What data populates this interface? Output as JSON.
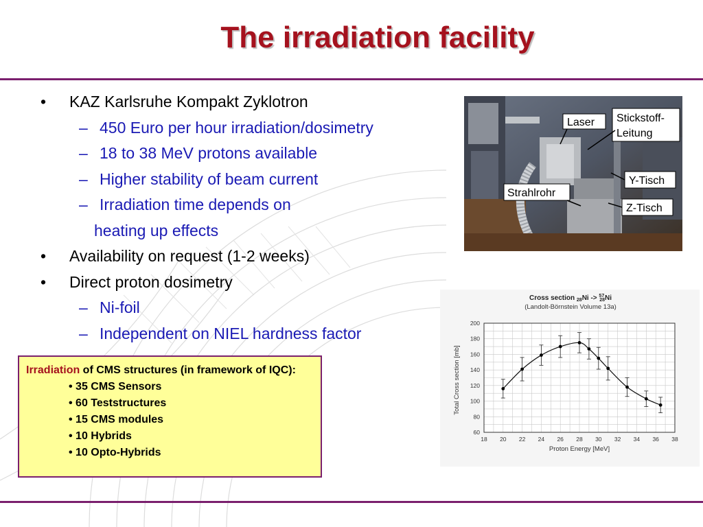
{
  "slide": {
    "title": "The irradiation facility",
    "bullets": [
      {
        "level": 1,
        "text": "KAZ Karlsruhe Kompakt Zyklotron"
      },
      {
        "level": 2,
        "text": "450 Euro per hour irradiation/dosimetry"
      },
      {
        "level": 2,
        "text": "18 to 38 MeV protons available"
      },
      {
        "level": 2,
        "text": "Higher stability of beam current"
      },
      {
        "level": 2,
        "text": "Irradiation time depends on"
      },
      {
        "level": 3,
        "text": "heating up effects"
      },
      {
        "level": 1,
        "text": "Availability on request (1-2 weeks)"
      },
      {
        "level": 1,
        "text": "Direct proton dosimetry"
      },
      {
        "level": 2,
        "text": "Ni-foil"
      },
      {
        "level": 2,
        "text": "Independent on NIEL hardness factor"
      }
    ]
  },
  "infobox": {
    "highlight": "Irradiation",
    "lead": " of CMS structures (in framework of IQC):",
    "items": [
      "• 35 CMS Sensors",
      "• 60 Teststructures",
      "• 15 CMS modules",
      "• 10 Hybrids",
      "• 10 Opto-Hybrids"
    ]
  },
  "photo": {
    "labels": [
      "Laser",
      "Stickstoff-",
      "Leitung",
      "Strahlrohr",
      "Y-Tisch",
      "Z-Tisch"
    ]
  },
  "colors": {
    "title": "#a5121e",
    "rule": "#7a1f6e",
    "sub_bullet_text": "#1a1ab4",
    "infobox_fill": "#ffff99"
  },
  "chart_data": {
    "type": "scatter",
    "title_parts": {
      "a": "Cross section ",
      "b": "28",
      "c": "Ni -> ",
      "d": "57",
      "e": "28",
      "f": "Ni"
    },
    "subtitle": "(Landolt-Börnstein Volume 13a)",
    "xlabel": "Proton Energy [MeV]",
    "ylabel": "Total Cross section [mb]",
    "xlim": [
      18,
      38
    ],
    "ylim": [
      60,
      200
    ],
    "xticks": [
      18,
      20,
      22,
      24,
      26,
      28,
      30,
      32,
      34,
      36,
      38
    ],
    "yticks": [
      60,
      80,
      100,
      120,
      140,
      160,
      180,
      200
    ],
    "grid": true,
    "points": [
      {
        "x": 20,
        "y": 116,
        "err": 12
      },
      {
        "x": 22,
        "y": 141,
        "err": 15
      },
      {
        "x": 24,
        "y": 159,
        "err": 13
      },
      {
        "x": 26,
        "y": 170,
        "err": 14
      },
      {
        "x": 28,
        "y": 175,
        "err": 13
      },
      {
        "x": 29,
        "y": 167,
        "err": 13
      },
      {
        "x": 30,
        "y": 155,
        "err": 14
      },
      {
        "x": 31,
        "y": 142,
        "err": 15
      },
      {
        "x": 33,
        "y": 118,
        "err": 12
      },
      {
        "x": 35,
        "y": 103,
        "err": 10
      },
      {
        "x": 36.5,
        "y": 95,
        "err": 10
      }
    ]
  }
}
